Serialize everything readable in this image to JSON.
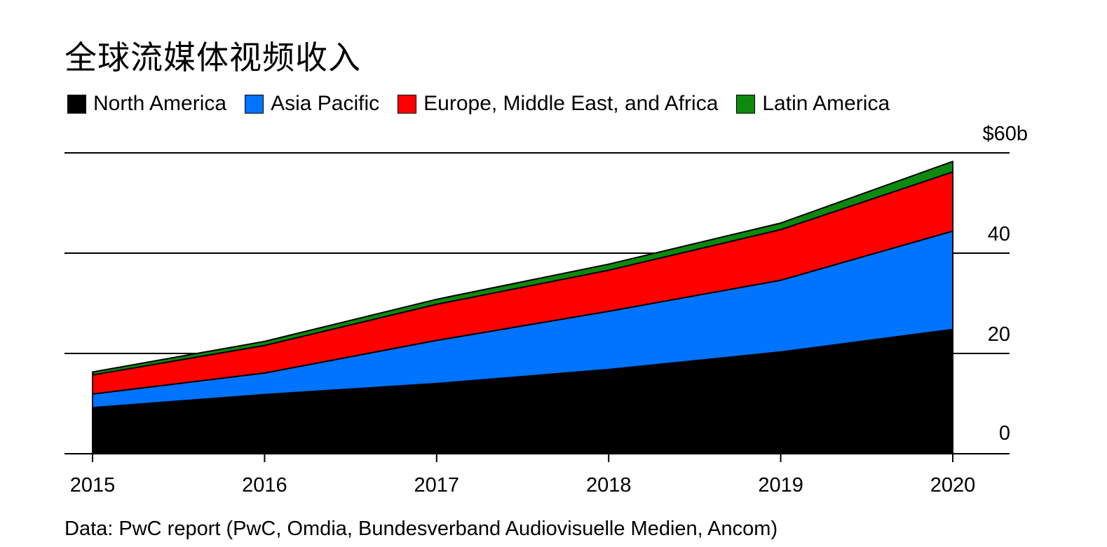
{
  "title": "全球流媒体视频收入",
  "source": "Data: PwC report (PwC, Omdia, Bundesverband Audiovisuelle Medien, Ancom)",
  "chart_data": {
    "type": "area",
    "stacked": true,
    "title": "全球流媒体视频收入",
    "x": [
      "2015",
      "2016",
      "2017",
      "2018",
      "2019",
      "2020"
    ],
    "series": [
      {
        "name": "North America",
        "color": "#000000",
        "values": [
          9.2,
          11.8,
          14.0,
          16.8,
          20.3,
          24.8
        ]
      },
      {
        "name": "Asia Pacific",
        "color": "#0073ff",
        "values": [
          2.7,
          4.3,
          8.6,
          11.6,
          14.3,
          19.6
        ]
      },
      {
        "name": "Europe, Middle East, and Africa",
        "color": "#ff0000",
        "values": [
          3.8,
          5.5,
          7.2,
          8.2,
          10.1,
          11.8
        ]
      },
      {
        "name": "Latin America",
        "color": "#0d8a0d",
        "values": [
          0.6,
          0.8,
          1.0,
          1.2,
          1.3,
          2.1
        ]
      }
    ],
    "y_ticks": [
      "0",
      "20",
      "40",
      "$60b"
    ],
    "ylim": [
      0,
      60
    ],
    "y_axis_position": "right",
    "grid": true,
    "legend_position": "top-left"
  }
}
